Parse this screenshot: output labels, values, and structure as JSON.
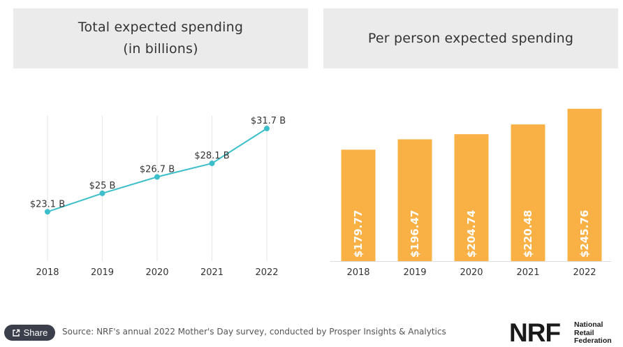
{
  "chart_data": [
    {
      "type": "line",
      "title": "Total expected spending",
      "subtitle": "(in billions)",
      "categories": [
        "2018",
        "2019",
        "2020",
        "2021",
        "2022"
      ],
      "values": [
        23.1,
        25,
        26.7,
        28.1,
        31.7
      ],
      "labels": [
        "$23.1 B",
        "$25 B",
        "$26.7 B",
        "$28.1 B",
        "$31.7 B"
      ],
      "ylim": [
        18,
        33
      ],
      "grid": "vertical",
      "color": "#3cbfcb"
    },
    {
      "type": "bar",
      "title": "Per person expected spending",
      "categories": [
        "2018",
        "2019",
        "2020",
        "2021",
        "2022"
      ],
      "values": [
        179.77,
        196.47,
        204.74,
        220.48,
        245.76
      ],
      "labels": [
        "$179.77",
        "$196.47",
        "$204.74",
        "$220.48",
        "$245.76"
      ],
      "ylim": [
        0,
        250
      ],
      "color": "#f9b044"
    }
  ],
  "footer": {
    "share_label": "Share",
    "share_icon": "share-icon",
    "source": "Source: NRF's annual 2022 Mother's Day survey, conducted by Prosper Insights & Analytics",
    "logo_mark": "NRF",
    "logo_lines": [
      "National",
      "Retail",
      "Federation"
    ]
  }
}
